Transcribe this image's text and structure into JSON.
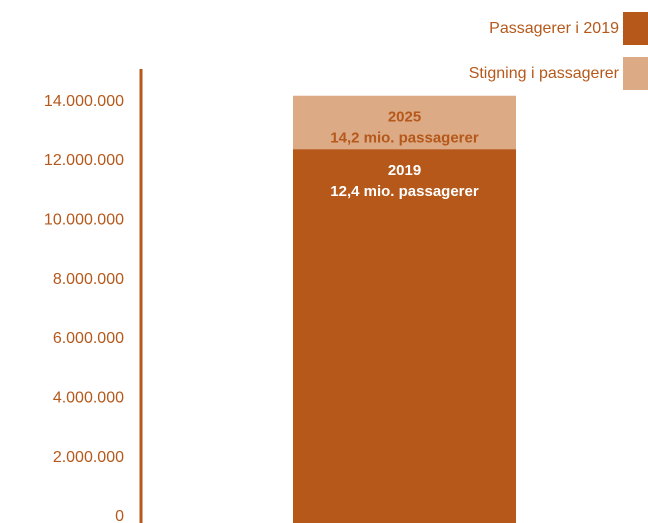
{
  "chart_data": {
    "type": "stacked_bar",
    "categories": [
      null
    ],
    "series": [
      {
        "name": "Passagerer i 2019",
        "color": "#b5581a",
        "values": [
          12400000
        ]
      },
      {
        "name": "Stigning i passagerer",
        "color": "#dcaa85",
        "values": [
          1800000
        ]
      }
    ],
    "annotations": [
      {
        "title": "2019",
        "text": "12,4 mio. passagerer"
      },
      {
        "title": "2025",
        "text": "14,2 mio. passagerer"
      }
    ],
    "ylim": [
      0,
      15000000
    ],
    "yticks": [
      0,
      {
        "value": 2000000,
        "label": "2.000.000"
      },
      {
        "value": 4000000,
        "label": "4.000.000"
      },
      {
        "value": 6000000,
        "label": "6.000.000"
      },
      {
        "value": 8000000,
        "label": "8.000.000"
      },
      {
        "value": 10000000,
        "label": "10.000.000"
      },
      {
        "value": 12000000,
        "label": "12.000.000"
      },
      {
        "value": 14000000,
        "label": "14.000.000"
      }
    ],
    "legend": "top-right"
  }
}
